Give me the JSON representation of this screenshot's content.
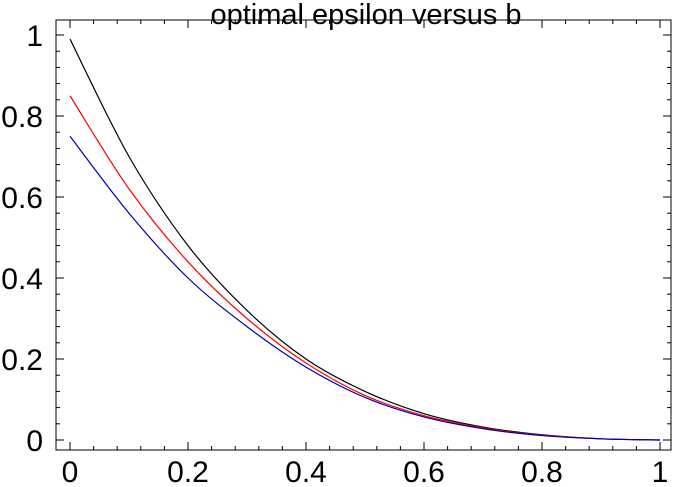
{
  "chart_data": {
    "type": "line",
    "title": "optimal epsilon versus b",
    "xlabel": "",
    "ylabel": "",
    "xlim": [
      0,
      1
    ],
    "ylim": [
      0,
      1
    ],
    "x_ticks": [
      0,
      0.2,
      0.4,
      0.6,
      0.8,
      1
    ],
    "y_ticks": [
      0,
      0.2,
      0.4,
      0.6,
      0.8,
      1
    ],
    "x_tick_labels": [
      "0",
      "0.2",
      "0.4",
      "0.6",
      "0.8",
      "1"
    ],
    "y_tick_labels": [
      "0",
      "0.2",
      "0.4",
      "0.6",
      "0.8",
      "1"
    ],
    "grid": false,
    "legend": "none",
    "x": [
      0,
      0.1,
      0.2,
      0.3,
      0.4,
      0.5,
      0.6,
      0.7,
      0.8,
      0.9,
      1
    ],
    "series": [
      {
        "color": "#000000",
        "values": [
          0.99,
          0.7,
          0.48,
          0.32,
          0.2,
          0.12,
          0.065,
          0.032,
          0.013,
          0.003,
          0.0
        ]
      },
      {
        "color": "#ff0000",
        "values": [
          0.85,
          0.62,
          0.44,
          0.3,
          0.19,
          0.11,
          0.06,
          0.03,
          0.012,
          0.003,
          0.0
        ]
      },
      {
        "color": "#0000aa",
        "values": [
          0.75,
          0.56,
          0.4,
          0.28,
          0.18,
          0.105,
          0.057,
          0.028,
          0.011,
          0.003,
          0.0
        ]
      }
    ]
  }
}
